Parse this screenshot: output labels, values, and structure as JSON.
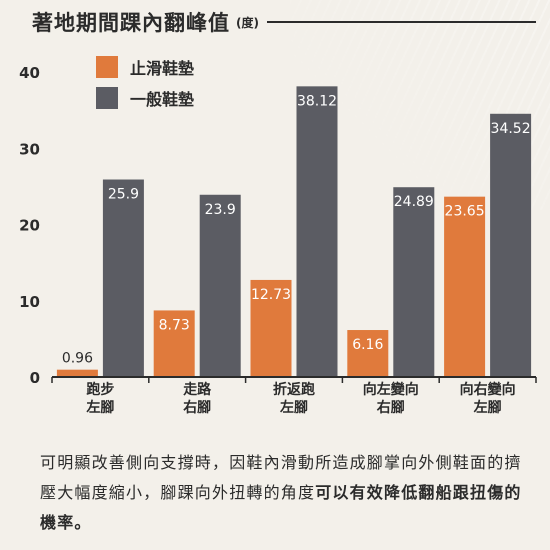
{
  "header": {
    "title": "著地期間踝內翻峰值",
    "unit": "(度)"
  },
  "colors": {
    "series_1": "#e07a3c",
    "series_2": "#5b5c63",
    "axis": "#2b2b2b",
    "text": "#2b2b2b",
    "bar_label": "#ffffff"
  },
  "chart_data": {
    "type": "bar",
    "title": "著地期間踝內翻峰值",
    "ylabel": "(度)",
    "xlabel": "",
    "ylim": [
      0,
      40
    ],
    "yticks": [
      "0",
      "10",
      "20",
      "30",
      "40"
    ],
    "grid": false,
    "legend_position": "top-left",
    "categories": [
      [
        "跑步",
        "左腳"
      ],
      [
        "走路",
        "右腳"
      ],
      [
        "折返跑",
        "左腳"
      ],
      [
        "向左變向",
        "右腳"
      ],
      [
        "向右變向",
        "左腳"
      ]
    ],
    "series": [
      {
        "name": "止滑鞋墊",
        "values": [
          0.96,
          8.73,
          12.73,
          6.16,
          23.65
        ],
        "labels": [
          "0.96",
          "8.73",
          "12.73",
          "6.16",
          "23.65"
        ]
      },
      {
        "name": "一般鞋墊",
        "values": [
          25.9,
          23.9,
          38.12,
          24.89,
          34.52
        ],
        "labels": [
          "25.9",
          "23.9",
          "38.12",
          "24.89",
          "34.52"
        ]
      }
    ]
  },
  "caption": {
    "normal": "可明顯改善側向支撐時，因鞋內滑動所造成腳掌向外側鞋面的擠壓大幅度縮小，腳踝向外扭轉的角度",
    "bold": "可以有效降低翻船跟扭傷的機率。"
  }
}
